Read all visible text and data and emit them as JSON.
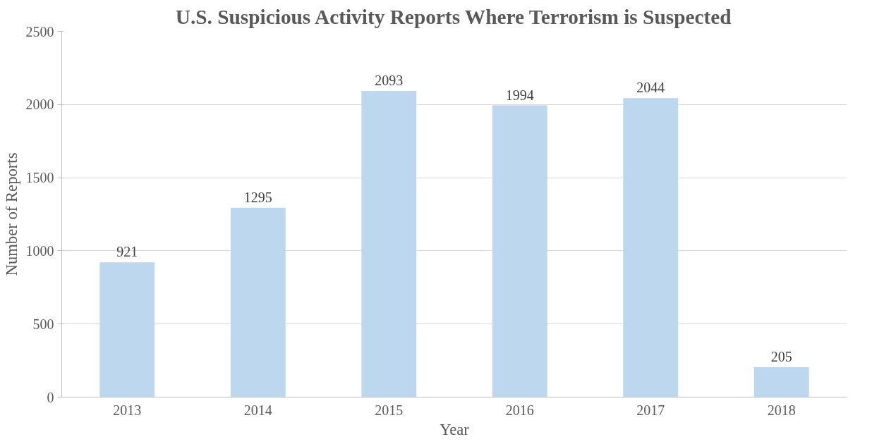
{
  "chart_data": {
    "type": "bar",
    "title": "U.S. Suspicious Activity Reports Where Terrorism is Suspected",
    "xlabel": "Year",
    "ylabel": "Number of Reports",
    "categories": [
      "2013",
      "2014",
      "2015",
      "2016",
      "2017",
      "2018"
    ],
    "values": [
      921,
      1295,
      2093,
      1994,
      2044,
      205
    ],
    "color": "#bdd7ee",
    "ylim": [
      0,
      2500
    ],
    "yticks": [
      0,
      500,
      1000,
      1500,
      2000,
      2500
    ],
    "grid": "y",
    "data_labels": true
  }
}
